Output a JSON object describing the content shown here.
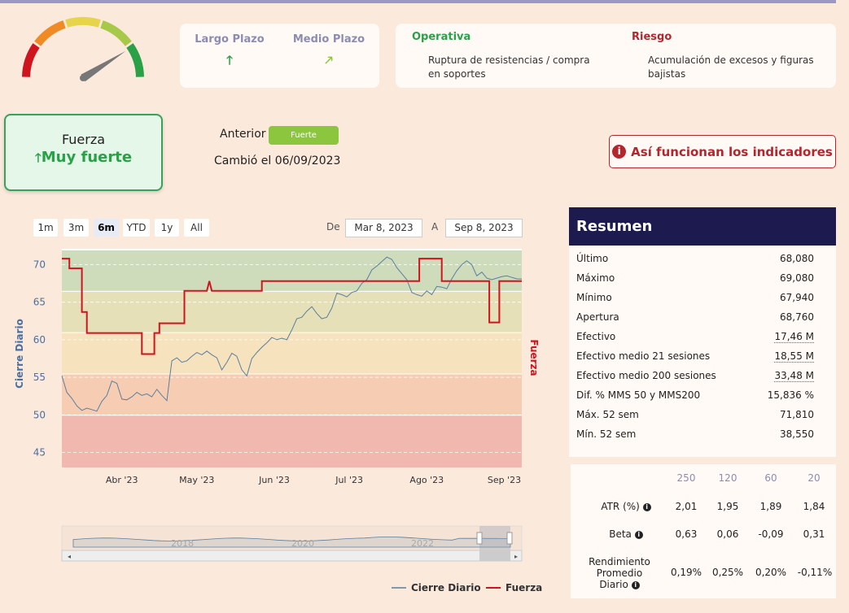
{
  "gauge": {
    "name": "gauge-icon",
    "level": 0.82
  },
  "trend": {
    "largo": {
      "label": "Largo Plazo",
      "arrow": "🡑"
    },
    "medio": {
      "label": "Medio Plazo",
      "arrow": "🡕"
    }
  },
  "operativa": {
    "title": "Operativa",
    "text": "Ruptura de resistencias / compra en soportes",
    "color": "#2aa047"
  },
  "riesgo": {
    "title": "Riesgo",
    "text": "Acumulación de excesos y figuras bajistas",
    "color": "#b3262e"
  },
  "fuerza": {
    "title": "Fuerza",
    "value": "Muy fuerte",
    "arrow": "🡑"
  },
  "anterior": {
    "label": "Anterior",
    "value": "Fuerte"
  },
  "cambio": "Cambió el 06/09/2023",
  "info_button": {
    "label": "Así funcionan los indicadores",
    "icon": "i"
  },
  "ranges": [
    "1m",
    "3m",
    "6m",
    "YTD",
    "1y",
    "All"
  ],
  "selected_range": "6m",
  "date_from": {
    "label": "De",
    "value": "Mar 8, 2023"
  },
  "date_to": {
    "label": "A",
    "value": "Sep 8, 2023"
  },
  "chart_data": {
    "type": "line",
    "ylabel": "Cierre Diario",
    "y2label": "Fuerza",
    "ylim": [
      43,
      72
    ],
    "yticks": [
      45,
      50,
      55,
      60,
      65,
      70
    ],
    "xticks": [
      "Abr '23",
      "May '23",
      "Jun '23",
      "Jul '23",
      "Ago '23",
      "Sep '23"
    ],
    "xtick_days": [
      24,
      54,
      85,
      115,
      146,
      177
    ],
    "x_range_days": [
      0,
      184
    ],
    "bands": [
      {
        "from": 43,
        "to": 50,
        "color": "#f0b8ae"
      },
      {
        "from": 50,
        "to": 55.5,
        "color": "#f6cdb2"
      },
      {
        "from": 55.5,
        "to": 61,
        "color": "#f6e2bd"
      },
      {
        "from": 61,
        "to": 66.5,
        "color": "#e6e0b8"
      },
      {
        "from": 66.5,
        "to": 72,
        "color": "#cfdcbc"
      }
    ],
    "series": [
      {
        "name": "Cierre Diario",
        "color": "#5a7e9e",
        "x": [
          0,
          2,
          4,
          6,
          8,
          10,
          12,
          14,
          16,
          18,
          20,
          22,
          24,
          26,
          28,
          30,
          32,
          34,
          36,
          38,
          40,
          42,
          44,
          46,
          48,
          50,
          52,
          54,
          56,
          58,
          60,
          62,
          64,
          66,
          68,
          70,
          72,
          74,
          76,
          78,
          80,
          82,
          84,
          86,
          88,
          90,
          92,
          94,
          96,
          98,
          100,
          102,
          104,
          106,
          108,
          110,
          112,
          114,
          116,
          118,
          120,
          122,
          124,
          126,
          128,
          130,
          132,
          134,
          136,
          138,
          140,
          142,
          144,
          146,
          148,
          150,
          152,
          154,
          156,
          158,
          160,
          162,
          164,
          166,
          168,
          170,
          172,
          174,
          176,
          178,
          180,
          182,
          184
        ],
        "values": [
          55.2,
          53.0,
          52.2,
          51.2,
          50.6,
          50.9,
          50.7,
          50.5,
          51.8,
          52.6,
          54.5,
          54.2,
          52.1,
          52.0,
          52.4,
          53.0,
          52.6,
          52.8,
          52.4,
          53.4,
          52.6,
          51.9,
          57.2,
          57.6,
          57.0,
          57.2,
          57.8,
          58.3,
          58.0,
          58.5,
          58.0,
          57.6,
          56.0,
          57.0,
          58.2,
          57.8,
          56.0,
          55.2,
          57.5,
          58.3,
          59.0,
          59.6,
          60.3,
          60.0,
          60.2,
          60.0,
          61.3,
          62.8,
          63.0,
          63.8,
          64.4,
          63.5,
          62.8,
          63.0,
          64.2,
          66.2,
          66.0,
          65.7,
          66.3,
          66.5,
          67.5,
          68.0,
          69.3,
          69.8,
          70.4,
          71.0,
          70.7,
          69.6,
          68.8,
          68.0,
          66.3,
          66.0,
          65.8,
          66.5,
          66.0,
          67.1,
          67.0,
          66.8,
          68.1,
          69.2,
          70.0,
          70.5,
          70.0,
          68.5,
          69.0,
          68.2,
          68.0,
          68.2,
          68.4,
          68.5,
          68.3,
          68.1,
          68.08
        ]
      },
      {
        "name": "Fuerza",
        "color": "#d0141d",
        "step_x": [
          0,
          3,
          3,
          8,
          8,
          10,
          10,
          32,
          32,
          37,
          37,
          39,
          39,
          49,
          49,
          58,
          58,
          59,
          59,
          60,
          60,
          80,
          80,
          143,
          143,
          152,
          152,
          171,
          171,
          175,
          175,
          177,
          177,
          184
        ],
        "step_y": [
          70.8,
          70.8,
          69.5,
          69.5,
          63.7,
          63.7,
          60.9,
          60.9,
          58.1,
          58.1,
          60.9,
          60.9,
          62.2,
          62.2,
          66.5,
          66.5,
          66.5,
          67.8,
          67.8,
          66.5,
          66.5,
          66.5,
          67.8,
          67.8,
          70.8,
          70.8,
          67.8,
          67.8,
          62.3,
          62.3,
          67.8,
          67.8,
          67.8,
          67.8
        ]
      }
    ],
    "navigator_labels": [
      "2018",
      "2020",
      "2022"
    ]
  },
  "legend": [
    {
      "label": "Cierre Diario",
      "color": "#7f99ad"
    },
    {
      "label": "Fuerza",
      "color": "#d0141d"
    }
  ],
  "resumen": {
    "title": "Resumen",
    "rows": [
      {
        "label": "Último",
        "value": "68,080",
        "u": false
      },
      {
        "label": "Máximo",
        "value": "69,080",
        "u": false
      },
      {
        "label": "Mínimo",
        "value": "67,940",
        "u": false
      },
      {
        "label": "Apertura",
        "value": "68,760",
        "u": false
      },
      {
        "label": "Efectivo",
        "value": "17,46 M",
        "u": true
      },
      {
        "label": "Efectivo medio 21 sesiones",
        "value": "18,55 M",
        "u": true
      },
      {
        "label": "Efectivo medio 200 sesiones",
        "value": "33,48 M",
        "u": true
      },
      {
        "label": "Dif. % MMS 50 y MMS200",
        "value": "15,836 %",
        "u": false
      },
      {
        "label": "Máx. 52 sem",
        "value": "71,810",
        "u": false
      },
      {
        "label": "Mín. 52 sem",
        "value": "38,550",
        "u": false
      }
    ]
  },
  "stats": {
    "headers": [
      "250",
      "120",
      "60",
      "20"
    ],
    "rows": [
      {
        "label": "ATR (%)",
        "values": [
          "2,01",
          "1,95",
          "1,89",
          "1,84"
        ]
      },
      {
        "label": "Beta",
        "values": [
          "0,63",
          "0,06",
          "-0,09",
          "0,31"
        ]
      },
      {
        "label": "Rendimiento Promedio Diario",
        "values": [
          "0,19%",
          "0,25%",
          "0,20%",
          "-0,11%"
        ]
      }
    ]
  }
}
